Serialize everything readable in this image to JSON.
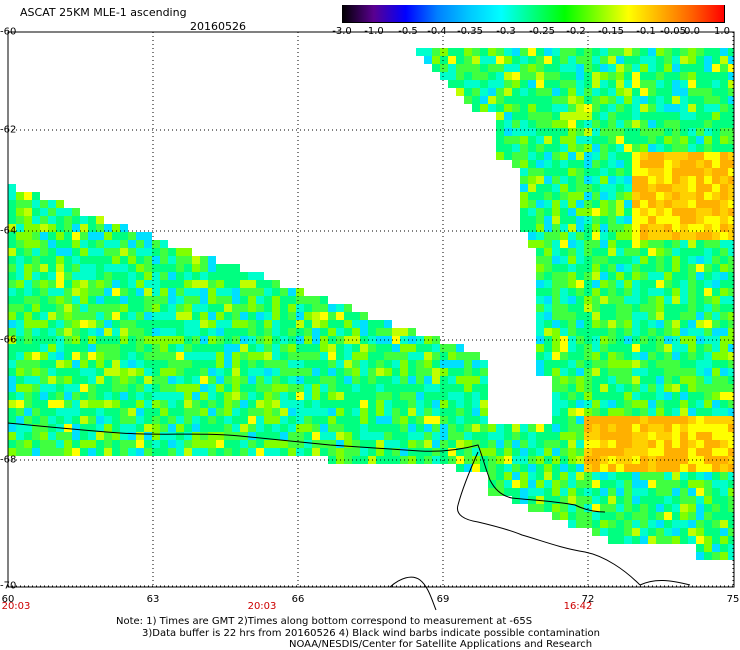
{
  "header": {
    "title": "ASCAT 25KM MLE-1 ascending",
    "date": "20160526"
  },
  "colorbar": {
    "labels": [
      "-3.0",
      "-1.0",
      "-0.5",
      "-0.4",
      "-0.35",
      "-0.3",
      "-0.25",
      "-0.2",
      "-0.15",
      "-0.1",
      "-0.05",
      "0.0",
      "1.0"
    ],
    "colors": [
      "#000000",
      "#5a0090",
      "#0000ff",
      "#0080ff",
      "#00c8ff",
      "#00ffff",
      "#00ff80",
      "#00ff00",
      "#80ff00",
      "#ffff00",
      "#ffb000",
      "#ff6000",
      "#ff0000"
    ]
  },
  "map": {
    "lat_labels": [
      "-60",
      "-62",
      "-64",
      "-66",
      "-68",
      "-70"
    ],
    "lon_labels": [
      "60",
      "63",
      "66",
      "69",
      "72",
      "75"
    ],
    "time_labels": [
      "20:03",
      "20:03",
      "16:42"
    ]
  },
  "footer": {
    "note1": "Note: 1) Times are GMT 2)Times along bottom correspond to measurement at -65S",
    "note2": "3)Data buffer is 22 hrs from 20160526 4) Black wind barbs indicate possible contamination",
    "credit": "NOAA/NESDIS/Center for Satellite Applications and Research"
  }
}
